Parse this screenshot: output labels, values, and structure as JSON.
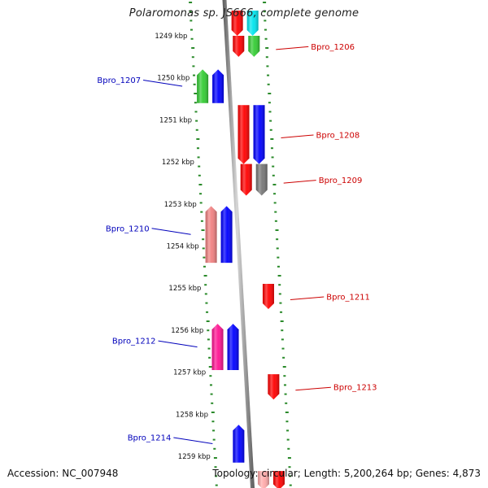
{
  "title": "Polaromonas sp. JS666, complete genome",
  "footer": {
    "accession": "Accession: NC_007948",
    "summary": "Topology: circular; Length: 5,200,264 bp; Genes: 4,873"
  },
  "colors": {
    "backbone": "#8a8a8a",
    "tick": "#2a8a2a",
    "label_forward": "#cc0000",
    "label_reverse": "#0000bb"
  },
  "scale": {
    "unit": "kbp",
    "ticks": [
      {
        "pos": 1249,
        "label": "1249 kbp"
      },
      {
        "pos": 1250,
        "label": "1250 kbp"
      },
      {
        "pos": 1251,
        "label": "1251 kbp"
      },
      {
        "pos": 1252,
        "label": "1252 kbp"
      },
      {
        "pos": 1253,
        "label": "1253 kbp"
      },
      {
        "pos": 1254,
        "label": "1254 kbp"
      },
      {
        "pos": 1255,
        "label": "1255 kbp"
      },
      {
        "pos": 1256,
        "label": "1256 kbp"
      },
      {
        "pos": 1257,
        "label": "1257 kbp"
      },
      {
        "pos": 1258,
        "label": "1258 kbp"
      },
      {
        "pos": 1259,
        "label": "1259 kbp"
      }
    ]
  },
  "genes": [
    {
      "start": 1248.4,
      "end": 1249.0,
      "strand": "-",
      "track": "inner",
      "color": "#ff0000",
      "label": ""
    },
    {
      "start": 1248.4,
      "end": 1249.0,
      "strand": "-",
      "track": "outer",
      "color": "#00e5ee",
      "label": ""
    },
    {
      "start": 1249.0,
      "end": 1249.5,
      "strand": "-",
      "track": "inner",
      "color": "#ff0000",
      "label": ""
    },
    {
      "start": 1249.0,
      "end": 1249.5,
      "strand": "-",
      "track": "outer",
      "color": "#33cc33",
      "label": "Bpro_1206"
    },
    {
      "start": 1249.8,
      "end": 1250.6,
      "strand": "+",
      "track": "outer",
      "color": "#33cc33",
      "label": "Bpro_1207"
    },
    {
      "start": 1249.8,
      "end": 1250.6,
      "strand": "+",
      "track": "inner",
      "color": "#0000ff",
      "label": ""
    },
    {
      "start": 1250.65,
      "end": 1252.05,
      "strand": "-",
      "track": "inner",
      "color": "#ff0000",
      "label": ""
    },
    {
      "start": 1250.65,
      "end": 1252.05,
      "strand": "-",
      "track": "outer",
      "color": "#0000ff",
      "label": "Bpro_1208"
    },
    {
      "start": 1252.05,
      "end": 1252.8,
      "strand": "-",
      "track": "inner",
      "color": "#ff0000",
      "label": ""
    },
    {
      "start": 1252.05,
      "end": 1252.8,
      "strand": "-",
      "track": "outer",
      "color": "#777777",
      "label": "Bpro_1209"
    },
    {
      "start": 1253.05,
      "end": 1254.4,
      "strand": "+",
      "track": "outer",
      "color": "#f08080",
      "label": "Bpro_1210"
    },
    {
      "start": 1253.05,
      "end": 1254.4,
      "strand": "+",
      "track": "inner",
      "color": "#0000ff",
      "label": ""
    },
    {
      "start": 1254.9,
      "end": 1255.5,
      "strand": "-",
      "track": "outer",
      "color": "#ff0000",
      "label": "Bpro_1211"
    },
    {
      "start": 1255.85,
      "end": 1256.95,
      "strand": "+",
      "track": "outer",
      "color": "#ff1493",
      "label": "Bpro_1212"
    },
    {
      "start": 1255.85,
      "end": 1256.95,
      "strand": "+",
      "track": "inner",
      "color": "#0000ff",
      "label": ""
    },
    {
      "start": 1257.05,
      "end": 1257.65,
      "strand": "-",
      "track": "outer",
      "color": "#ff0000",
      "label": "Bpro_1213"
    },
    {
      "start": 1258.25,
      "end": 1259.15,
      "strand": "+",
      "track": "inner",
      "color": "#0000ff",
      "label": "Bpro_1214"
    },
    {
      "start": 1259.35,
      "end": 1259.8,
      "strand": "-",
      "track": "inner",
      "color": "#ffaaaa",
      "label": ""
    },
    {
      "start": 1259.35,
      "end": 1259.8,
      "strand": "-",
      "track": "outer",
      "color": "#ff0000",
      "label": ""
    }
  ]
}
